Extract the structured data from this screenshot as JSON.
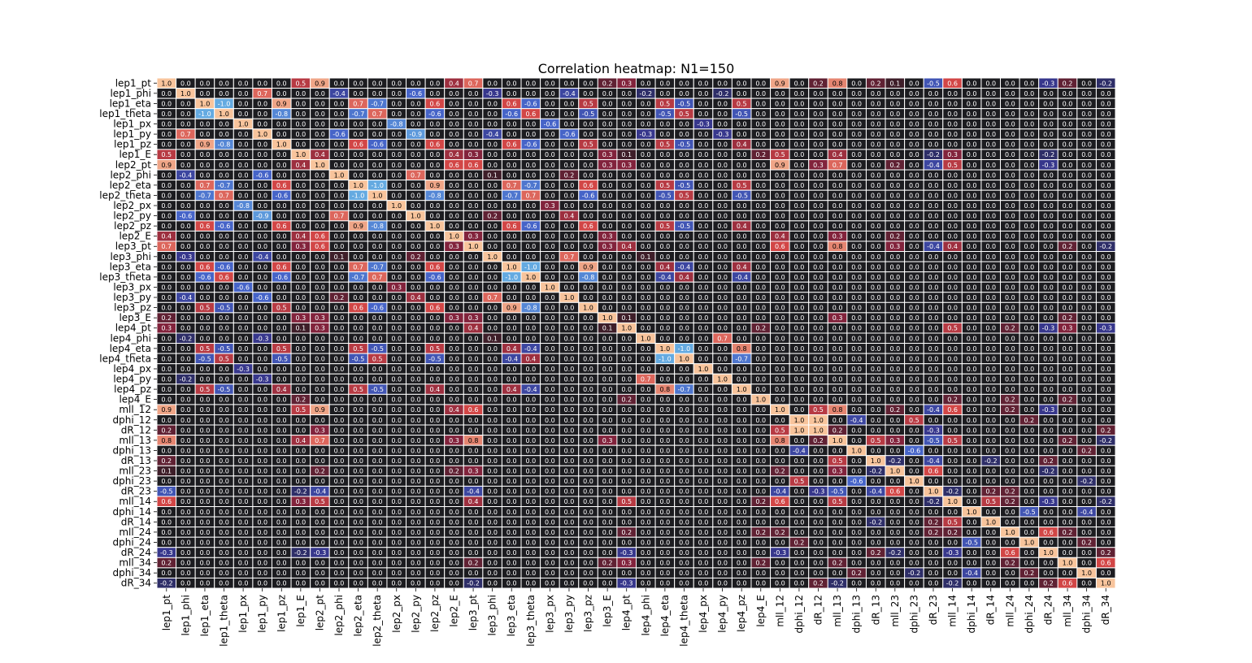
{
  "chart_data": {
    "type": "heatmap",
    "title": "Correlation heatmap: N1=150",
    "variables": [
      "lep1_pt",
      "lep1_phi",
      "lep1_eta",
      "lep1_theta",
      "lep1_px",
      "lep1_py",
      "lep1_pz",
      "lep1_E",
      "lep2_pt",
      "lep2_phi",
      "lep2_eta",
      "lep2_theta",
      "lep2_px",
      "lep2_py",
      "lep2_pz",
      "lep2_E",
      "lep3_pt",
      "lep3_phi",
      "lep3_eta",
      "lep3_theta",
      "lep3_px",
      "lep3_py",
      "lep3_pz",
      "lep3_E",
      "lep4_pt",
      "lep4_phi",
      "lep4_eta",
      "lep4_theta",
      "lep4_px",
      "lep4_py",
      "lep4_pz",
      "lep4_E",
      "mll_12",
      "dphi_12",
      "dR_12",
      "mll_13",
      "dphi_13",
      "dR_13",
      "mll_23",
      "dphi_23",
      "dR_23",
      "mll_14",
      "dphi_14",
      "dR_14",
      "mll_24",
      "dphi_24",
      "dR_24",
      "mll_34",
      "dphi_34",
      "dR_34"
    ],
    "value_range": [
      -1,
      1
    ],
    "annotation_format": "0.0",
    "grid": true,
    "colorscale": "diverging: dark blue (-1) via near-black (0) to light orange (+1)",
    "sparse_values": [
      [
        "lep1_pt",
        "lep2_pt",
        0.9
      ],
      [
        "lep1_pt",
        "lep1_E",
        0.5
      ],
      [
        "lep1_pt",
        "lep2_E",
        0.4
      ],
      [
        "lep1_pt",
        "lep3_pt",
        0.7
      ],
      [
        "lep1_pt",
        "lep4_pt",
        0.3
      ],
      [
        "lep1_pt",
        "mll_12",
        0.9
      ],
      [
        "lep1_pt",
        "mll_13",
        0.8
      ],
      [
        "lep1_pt",
        "dR_23",
        -0.5
      ],
      [
        "lep1_pt",
        "mll_14",
        0.6
      ],
      [
        "lep1_pt",
        "dR_24",
        -0.3
      ],
      [
        "lep1_pt",
        "mll_34",
        0.2
      ],
      [
        "lep1_pt",
        "dR_34",
        -0.2
      ],
      [
        "lep1_pt",
        "mll_23",
        0.1
      ],
      [
        "lep1_pt",
        "dR_12",
        0.2
      ],
      [
        "lep1_pt",
        "dR_13",
        0.2
      ],
      [
        "lep1_pt",
        "lep3_E",
        0.2
      ],
      [
        "lep1_phi",
        "lep1_py",
        0.7
      ],
      [
        "lep1_phi",
        "lep2_phi",
        -0.4
      ],
      [
        "lep1_phi",
        "lep2_py",
        -0.6
      ],
      [
        "lep1_phi",
        "lep3_phi",
        -0.3
      ],
      [
        "lep1_phi",
        "lep3_py",
        -0.4
      ],
      [
        "lep1_phi",
        "lep4_phi",
        -0.2
      ],
      [
        "lep1_phi",
        "lep4_py",
        -0.2
      ],
      [
        "lep1_eta",
        "lep1_theta",
        -1.0
      ],
      [
        "lep1_eta",
        "lep1_pz",
        0.9
      ],
      [
        "lep1_eta",
        "lep2_eta",
        0.7
      ],
      [
        "lep1_eta",
        "lep2_theta",
        -0.7
      ],
      [
        "lep1_eta",
        "lep2_pz",
        0.6
      ],
      [
        "lep1_eta",
        "lep3_eta",
        0.6
      ],
      [
        "lep1_eta",
        "lep3_theta",
        -0.6
      ],
      [
        "lep1_eta",
        "lep3_pz",
        0.5
      ],
      [
        "lep1_eta",
        "lep4_eta",
        0.5
      ],
      [
        "lep1_eta",
        "lep4_theta",
        -0.5
      ],
      [
        "lep1_eta",
        "lep4_pz",
        0.5
      ],
      [
        "lep1_theta",
        "lep1_pz",
        -0.8
      ],
      [
        "lep1_theta",
        "lep2_eta",
        -0.7
      ],
      [
        "lep1_theta",
        "lep2_theta",
        0.7
      ],
      [
        "lep1_theta",
        "lep2_pz",
        -0.6
      ],
      [
        "lep1_theta",
        "lep3_eta",
        -0.6
      ],
      [
        "lep1_theta",
        "lep3_theta",
        0.6
      ],
      [
        "lep1_theta",
        "lep3_pz",
        -0.5
      ],
      [
        "lep1_theta",
        "lep4_eta",
        -0.5
      ],
      [
        "lep1_theta",
        "lep4_theta",
        0.5
      ],
      [
        "lep1_theta",
        "lep4_pz",
        -0.5
      ],
      [
        "lep1_px",
        "lep2_px",
        -0.8
      ],
      [
        "lep1_px",
        "lep3_px",
        -0.6
      ],
      [
        "lep1_px",
        "lep4_px",
        -0.3
      ],
      [
        "lep1_py",
        "lep2_phi",
        -0.6
      ],
      [
        "lep1_py",
        "lep2_py",
        -0.9
      ],
      [
        "lep1_py",
        "lep3_phi",
        -0.4
      ],
      [
        "lep1_py",
        "lep3_py",
        -0.6
      ],
      [
        "lep1_py",
        "lep4_phi",
        -0.3
      ],
      [
        "lep1_py",
        "lep4_py",
        -0.3
      ],
      [
        "lep1_pz",
        "lep2_eta",
        0.6
      ],
      [
        "lep1_pz",
        "lep2_theta",
        -0.6
      ],
      [
        "lep1_pz",
        "lep2_pz",
        0.6
      ],
      [
        "lep1_pz",
        "lep3_eta",
        0.6
      ],
      [
        "lep1_pz",
        "lep3_theta",
        -0.6
      ],
      [
        "lep1_pz",
        "lep3_pz",
        0.5
      ],
      [
        "lep1_pz",
        "lep4_eta",
        0.5
      ],
      [
        "lep1_pz",
        "lep4_theta",
        -0.5
      ],
      [
        "lep1_pz",
        "lep4_pz",
        0.4
      ],
      [
        "lep1_E",
        "lep2_pt",
        0.4
      ],
      [
        "lep1_E",
        "lep2_E",
        0.4
      ],
      [
        "lep1_E",
        "lep3_pt",
        0.3
      ],
      [
        "lep1_E",
        "lep3_E",
        0.3
      ],
      [
        "lep1_E",
        "lep4_pt",
        0.1
      ],
      [
        "lep1_E",
        "mll_12",
        0.5
      ],
      [
        "lep1_E",
        "mll_13",
        0.4
      ],
      [
        "lep1_E",
        "mll_14",
        0.3
      ],
      [
        "lep1_E",
        "dR_23",
        -0.2
      ],
      [
        "lep1_E",
        "lep4_E",
        0.2
      ],
      [
        "lep1_E",
        "dR_24",
        -0.2
      ],
      [
        "lep2_pt",
        "lep2_E",
        0.6
      ],
      [
        "lep2_pt",
        "lep3_pt",
        0.6
      ],
      [
        "lep2_pt",
        "lep3_E",
        0.3
      ],
      [
        "lep2_pt",
        "lep4_pt",
        0.3
      ],
      [
        "lep2_pt",
        "mll_12",
        0.9
      ],
      [
        "lep2_pt",
        "mll_13",
        0.7
      ],
      [
        "lep2_pt",
        "mll_14",
        0.5
      ],
      [
        "lep2_pt",
        "dR_23",
        -0.4
      ],
      [
        "lep2_pt",
        "dR_24",
        -0.3
      ],
      [
        "lep2_pt",
        "mll_23",
        0.2
      ],
      [
        "lep2_pt",
        "dR_12",
        0.3
      ],
      [
        "lep2_phi",
        "lep2_py",
        0.7
      ],
      [
        "lep2_phi",
        "lep3_phi",
        0.1
      ],
      [
        "lep2_phi",
        "lep3_py",
        0.2
      ],
      [
        "lep2_eta",
        "lep2_theta",
        -1.0
      ],
      [
        "lep2_eta",
        "lep2_pz",
        0.9
      ],
      [
        "lep2_eta",
        "lep3_eta",
        0.7
      ],
      [
        "lep2_eta",
        "lep3_theta",
        -0.7
      ],
      [
        "lep2_eta",
        "lep3_pz",
        0.6
      ],
      [
        "lep2_eta",
        "lep4_eta",
        0.5
      ],
      [
        "lep2_eta",
        "lep4_theta",
        -0.5
      ],
      [
        "lep2_eta",
        "lep4_pz",
        0.5
      ],
      [
        "lep2_theta",
        "lep2_pz",
        -0.8
      ],
      [
        "lep2_theta",
        "lep3_eta",
        -0.7
      ],
      [
        "lep2_theta",
        "lep3_theta",
        0.7
      ],
      [
        "lep2_theta",
        "lep3_pz",
        -0.6
      ],
      [
        "lep2_theta",
        "lep4_eta",
        -0.5
      ],
      [
        "lep2_theta",
        "lep4_theta",
        0.5
      ],
      [
        "lep2_theta",
        "lep4_pz",
        -0.5
      ],
      [
        "lep2_px",
        "lep3_px",
        0.3
      ],
      [
        "lep2_py",
        "lep3_py",
        0.4
      ],
      [
        "lep2_py",
        "lep3_phi",
        0.2
      ],
      [
        "lep2_pz",
        "lep3_eta",
        0.6
      ],
      [
        "lep2_pz",
        "lep3_theta",
        -0.6
      ],
      [
        "lep2_pz",
        "lep3_pz",
        0.6
      ],
      [
        "lep2_pz",
        "lep4_eta",
        0.5
      ],
      [
        "lep2_pz",
        "lep4_theta",
        -0.5
      ],
      [
        "lep2_pz",
        "lep4_pz",
        0.4
      ],
      [
        "lep2_E",
        "lep3_pt",
        0.3
      ],
      [
        "lep2_E",
        "lep3_E",
        0.3
      ],
      [
        "lep2_E",
        "mll_12",
        0.4
      ],
      [
        "lep2_E",
        "mll_13",
        0.3
      ],
      [
        "lep2_E",
        "mll_23",
        0.2
      ],
      [
        "lep3_pt",
        "lep3_E",
        0.3
      ],
      [
        "lep3_pt",
        "lep4_pt",
        0.4
      ],
      [
        "lep3_pt",
        "mll_12",
        0.6
      ],
      [
        "lep3_pt",
        "mll_13",
        0.8
      ],
      [
        "lep3_pt",
        "mll_23",
        0.3
      ],
      [
        "lep3_pt",
        "dR_23",
        -0.4
      ],
      [
        "lep3_pt",
        "mll_14",
        0.4
      ],
      [
        "lep3_pt",
        "mll_34",
        0.2
      ],
      [
        "lep3_pt",
        "dR_34",
        -0.2
      ],
      [
        "lep3_phi",
        "lep3_py",
        0.7
      ],
      [
        "lep3_phi",
        "lep4_phi",
        0.1
      ],
      [
        "lep3_eta",
        "lep3_theta",
        -1.0
      ],
      [
        "lep3_eta",
        "lep3_pz",
        0.9
      ],
      [
        "lep3_eta",
        "lep4_eta",
        0.4
      ],
      [
        "lep3_eta",
        "lep4_theta",
        -0.4
      ],
      [
        "lep3_eta",
        "lep4_pz",
        0.4
      ],
      [
        "lep3_theta",
        "lep3_pz",
        -0.8
      ],
      [
        "lep3_theta",
        "lep4_eta",
        -0.4
      ],
      [
        "lep3_theta",
        "lep4_theta",
        0.4
      ],
      [
        "lep3_theta",
        "lep4_pz",
        -0.4
      ],
      [
        "lep3_E",
        "lep4_pt",
        0.1
      ],
      [
        "lep3_E",
        "mll_13",
        0.3
      ],
      [
        "lep3_E",
        "mll_34",
        0.2
      ],
      [
        "lep4_pt",
        "lep4_E",
        0.2
      ],
      [
        "lep4_pt",
        "mll_14",
        0.5
      ],
      [
        "lep4_pt",
        "mll_24",
        0.2
      ],
      [
        "lep4_pt",
        "mll_34",
        0.3
      ],
      [
        "lep4_pt",
        "dR_34",
        -0.3
      ],
      [
        "lep4_pt",
        "dR_24",
        -0.3
      ],
      [
        "lep4_phi",
        "lep4_py",
        0.7
      ],
      [
        "lep4_eta",
        "lep4_theta",
        -1.0
      ],
      [
        "lep4_eta",
        "lep4_pz",
        0.8
      ],
      [
        "lep4_theta",
        "lep4_pz",
        -0.7
      ],
      [
        "lep4_E",
        "mll_14",
        0.2
      ],
      [
        "lep4_E",
        "mll_24",
        0.2
      ],
      [
        "lep4_E",
        "mll_34",
        0.2
      ],
      [
        "mll_12",
        "dR_12",
        0.5
      ],
      [
        "mll_12",
        "mll_13",
        0.8
      ],
      [
        "mll_12",
        "dR_23",
        -0.4
      ],
      [
        "mll_12",
        "mll_14",
        0.6
      ],
      [
        "mll_12",
        "dR_24",
        -0.3
      ],
      [
        "mll_12",
        "mll_23",
        0.2
      ],
      [
        "mll_12",
        "mll_24",
        0.2
      ],
      [
        "dphi_12",
        "dR_12",
        1.0
      ],
      [
        "dphi_12",
        "dphi_13",
        -0.4
      ],
      [
        "dphi_12",
        "dphi_23",
        0.5
      ],
      [
        "dphi_12",
        "dphi_24",
        0.2
      ],
      [
        "dR_12",
        "dR_23",
        -0.3
      ],
      [
        "dR_12",
        "mll_13",
        0.2
      ],
      [
        "dR_12",
        "dR_34",
        0.2
      ],
      [
        "mll_13",
        "dR_13",
        0.5
      ],
      [
        "mll_13",
        "dR_23",
        -0.5
      ],
      [
        "mll_13",
        "mll_14",
        0.5
      ],
      [
        "mll_13",
        "mll_23",
        0.3
      ],
      [
        "mll_13",
        "mll_34",
        0.2
      ],
      [
        "mll_13",
        "dR_34",
        -0.2
      ],
      [
        "dphi_13",
        "dR_13",
        0.0
      ],
      [
        "dphi_13",
        "dphi_23",
        -0.6
      ],
      [
        "dphi_13",
        "dphi_34",
        0.2
      ],
      [
        "dR_13",
        "mll_23",
        -0.2
      ],
      [
        "dR_13",
        "dR_23",
        -0.4
      ],
      [
        "dR_13",
        "dR_14",
        -0.2
      ],
      [
        "dR_13",
        "dR_24",
        0.2
      ],
      [
        "mll_23",
        "dR_23",
        0.6
      ],
      [
        "mll_23",
        "dR_24",
        -0.2
      ],
      [
        "dphi_23",
        "dR_23",
        0.0
      ],
      [
        "dphi_23",
        "dphi_34",
        -0.2
      ],
      [
        "dR_23",
        "mll_14",
        -0.2
      ],
      [
        "dR_23",
        "dR_14",
        0.2
      ],
      [
        "dR_23",
        "mll_24",
        0.2
      ],
      [
        "mll_14",
        "dR_14",
        0.5
      ],
      [
        "mll_14",
        "mll_24",
        0.2
      ],
      [
        "mll_14",
        "dR_24",
        -0.3
      ],
      [
        "mll_14",
        "dR_34",
        -0.2
      ],
      [
        "dphi_14",
        "dphi_24",
        -0.5
      ],
      [
        "dphi_14",
        "dphi_34",
        -0.4
      ],
      [
        "mll_24",
        "dR_24",
        0.6
      ],
      [
        "mll_24",
        "mll_34",
        0.2
      ],
      [
        "dphi_24",
        "dphi_34",
        0.2
      ],
      [
        "dR_24",
        "dR_34",
        0.2
      ],
      [
        "mll_34",
        "dR_34",
        0.6
      ]
    ]
  }
}
